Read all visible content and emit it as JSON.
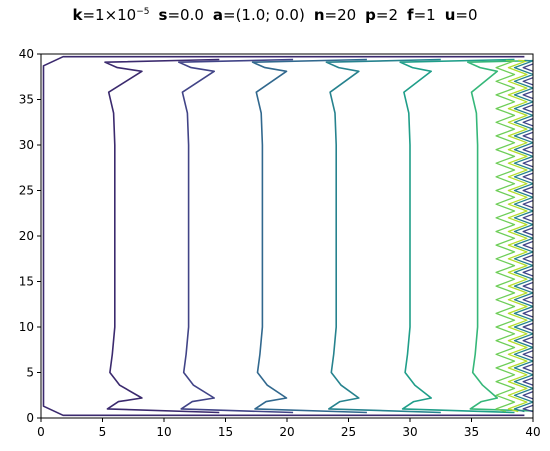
{
  "title_params": [
    {
      "key": "k",
      "value": "=1×10",
      "exp": "−5"
    },
    {
      "key": "s",
      "value": "=0.0"
    },
    {
      "key": "a",
      "value": "=(1.0; 0.0)"
    },
    {
      "key": "n",
      "value": "=20"
    },
    {
      "key": "p",
      "value": "=2"
    },
    {
      "key": "f",
      "value": "=1"
    },
    {
      "key": "u",
      "value": "=0"
    }
  ],
  "chart_data": {
    "type": "contour",
    "title": "k=1×10⁻⁵ s=0.0 a=(1.0; 0.0) n=20 p=2 f=1 u=0",
    "xlabel": "",
    "ylabel": "",
    "xlim": [
      0,
      40
    ],
    "ylim": [
      0,
      40
    ],
    "xticks": [
      0,
      5,
      10,
      15,
      20,
      25,
      30,
      35,
      40
    ],
    "yticks": [
      0,
      5,
      10,
      15,
      20,
      25,
      30,
      35,
      40
    ],
    "grid": false,
    "colormap": "viridis",
    "levels": [
      {
        "x": 6,
        "color": "#3b2a6e"
      },
      {
        "x": 12,
        "color": "#414487"
      },
      {
        "x": 18,
        "color": "#31688e"
      },
      {
        "x": 24,
        "color": "#26828e"
      },
      {
        "x": 30,
        "color": "#1f9e89"
      },
      {
        "x": 35.5,
        "color": "#35b779"
      },
      {
        "x": 37,
        "color": "#6ece58"
      },
      {
        "x": 38,
        "color": "#b5de2b"
      },
      {
        "x": 38.5,
        "color": "#26828e"
      },
      {
        "x": 39.2,
        "color": "#414487"
      }
    ],
    "boundary_color": "#3b2a6e"
  }
}
